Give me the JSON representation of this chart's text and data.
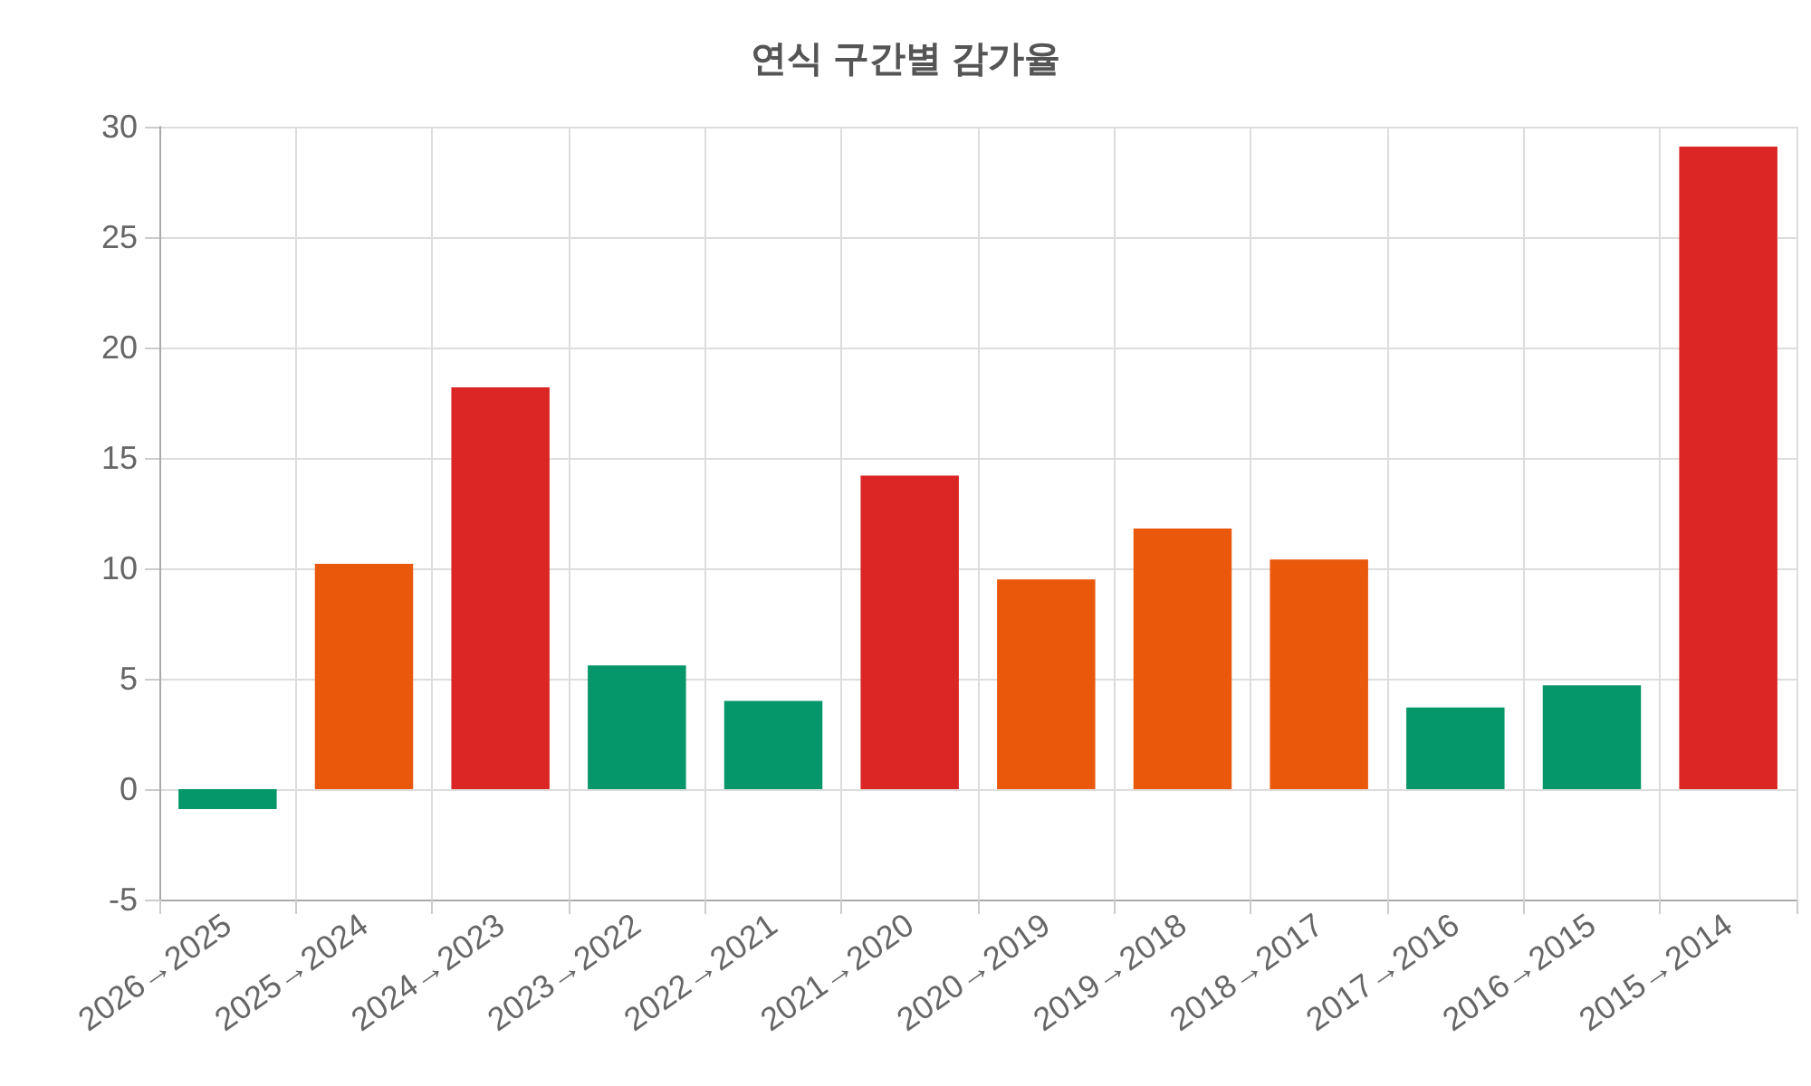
{
  "chart_data": {
    "type": "bar",
    "title": "연식 구간별 감가율",
    "categories": [
      "2026→2025",
      "2025→2024",
      "2024→2023",
      "2023→2022",
      "2022→2021",
      "2021→2020",
      "2020→2019",
      "2019→2018",
      "2018→2017",
      "2017→2016",
      "2016→2015",
      "2015→2014"
    ],
    "values": [
      -0.9,
      10.2,
      18.2,
      5.6,
      4.0,
      14.2,
      9.5,
      11.8,
      10.4,
      3.7,
      4.7,
      29.1
    ],
    "colors": [
      "#059669",
      "#ea580c",
      "#dc2626",
      "#059669",
      "#059669",
      "#dc2626",
      "#ea580c",
      "#ea580c",
      "#ea580c",
      "#059669",
      "#059669",
      "#dc2626"
    ],
    "ylim": [
      -5,
      30
    ],
    "yticks": [
      -5,
      0,
      5,
      10,
      15,
      20,
      25,
      30
    ],
    "grid": true
  }
}
